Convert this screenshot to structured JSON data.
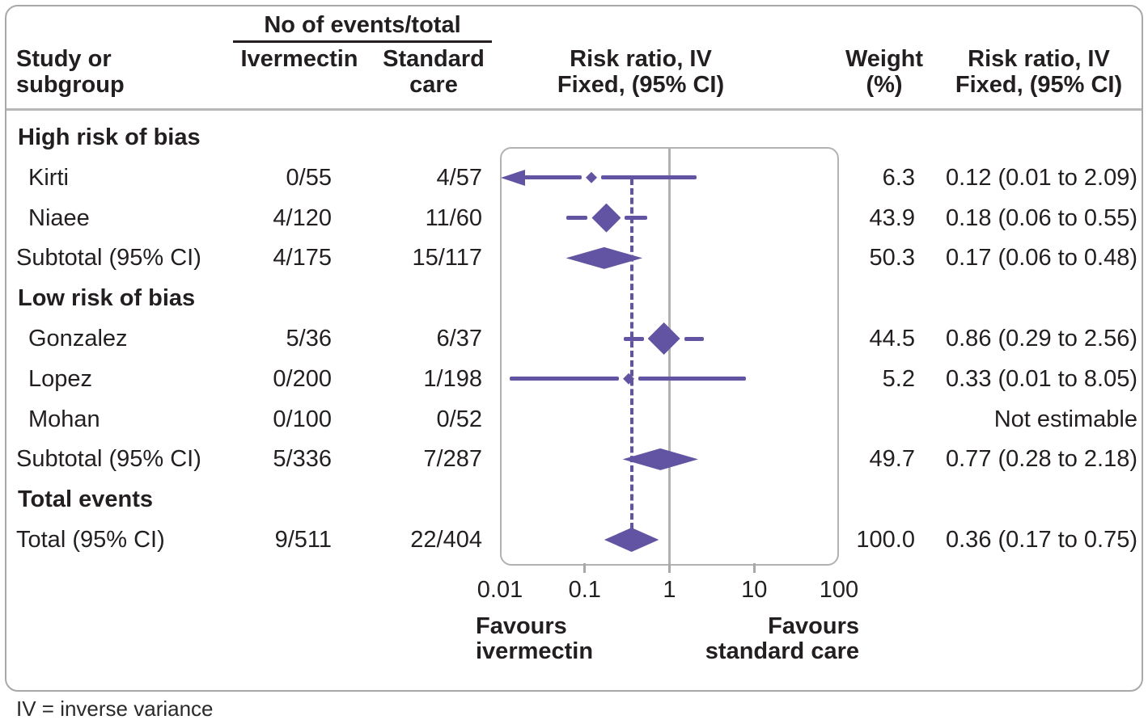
{
  "figure": {
    "header": {
      "study_col_line1": "Study or",
      "study_col_line2": "subgroup",
      "events_group": "No of events/total",
      "col_ivermectin": "Ivermectin",
      "col_standard_line1": "Standard",
      "col_standard_line2": "care",
      "plot_col_line1": "Risk ratio, IV",
      "plot_col_line2": "Fixed, (95% CI)",
      "weight_line1": "Weight",
      "weight_line2": "(%)",
      "rr_col_line1": "Risk ratio, IV",
      "rr_col_line2": "Fixed, (95% CI)"
    },
    "footnote": "IV = inverse variance"
  },
  "colors": {
    "accent": "#6254a2",
    "grid": "#b2b2b2",
    "border": "#a8a8a8",
    "text": "#231f20"
  },
  "chart_data": {
    "type": "forest",
    "effect_measure": "Risk ratio, IV Fixed, (95% CI)",
    "comparison": [
      "Ivermectin",
      "Standard care"
    ],
    "x_axis": {
      "scale": "log",
      "range": [
        0.01,
        100
      ],
      "ticks": [
        0.01,
        0.1,
        1,
        10,
        100
      ],
      "tick_labels": [
        "0.01",
        "0.1",
        "1",
        "10",
        "100"
      ],
      "minor_tick_marks": [
        0.1,
        1,
        10
      ],
      "null_line": 1,
      "pooled_estimate_line": 0.36,
      "favours_left_line1": "Favours",
      "favours_left_line2": "ivermectin",
      "favours_right_line1": "Favours",
      "favours_right_line2": "standard care"
    },
    "rows": [
      {
        "kind": "group",
        "label": "High risk of bias",
        "events_ivermectin": "",
        "events_standard": "",
        "weight": "",
        "rr_text": "",
        "rr": null
      },
      {
        "kind": "study",
        "label": "Kirti",
        "events_ivermectin": "0/55",
        "events_standard": "4/57",
        "weight": "6.3",
        "rr_text": "0.12 (0.01 to 2.09)",
        "rr": 0.12,
        "lo": 0.01,
        "hi": 2.09,
        "arrow_lo": true,
        "marker_size": 14
      },
      {
        "kind": "study",
        "label": "Niaee",
        "events_ivermectin": "4/120",
        "events_standard": "11/60",
        "weight": "43.9",
        "rr_text": "0.18 (0.06 to 0.55)",
        "rr": 0.18,
        "lo": 0.06,
        "hi": 0.55,
        "arrow_lo": false,
        "marker_size": 36
      },
      {
        "kind": "pooled",
        "label": "Subtotal (95% CI)",
        "events_ivermectin": "4/175",
        "events_standard": "15/117",
        "weight": "50.3",
        "rr_text": "0.17 (0.06 to 0.48)",
        "rr": 0.17,
        "lo": 0.06,
        "hi": 0.48
      },
      {
        "kind": "group",
        "label": "Low risk of bias",
        "events_ivermectin": "",
        "events_standard": "",
        "weight": "",
        "rr_text": "",
        "rr": null
      },
      {
        "kind": "study",
        "label": "Gonzalez",
        "events_ivermectin": "5/36",
        "events_standard": "6/37",
        "weight": "44.5",
        "rr_text": "0.86 (0.29 to 2.56)",
        "rr": 0.86,
        "lo": 0.29,
        "hi": 2.56,
        "arrow_lo": false,
        "marker_size": 40
      },
      {
        "kind": "study",
        "label": "Lopez",
        "events_ivermectin": "0/200",
        "events_standard": "1/198",
        "weight": "5.2",
        "rr_text": "0.33 (0.01 to 8.05)",
        "rr": 0.33,
        "lo": 0.01,
        "plot_lo": 0.013,
        "hi": 8.05,
        "arrow_lo": false,
        "marker_size": 14
      },
      {
        "kind": "study",
        "label": "Mohan",
        "events_ivermectin": "0/100",
        "events_standard": "0/52",
        "weight": "",
        "rr_text": "Not estimable",
        "rr": null
      },
      {
        "kind": "pooled",
        "label": "Subtotal (95% CI)",
        "events_ivermectin": "5/336",
        "events_standard": "7/287",
        "weight": "49.7",
        "rr_text": "0.77 (0.28 to 2.18)",
        "rr": 0.77,
        "lo": 0.28,
        "hi": 2.18
      },
      {
        "kind": "group",
        "label": "Total events",
        "events_ivermectin": "",
        "events_standard": "",
        "weight": "",
        "rr_text": "",
        "rr": null
      },
      {
        "kind": "pooled",
        "label": "Total (95% CI)",
        "events_ivermectin": "9/511",
        "events_standard": "22/404",
        "weight": "100.0",
        "rr_text": "0.36 (0.17 to 0.75)",
        "rr": 0.36,
        "lo": 0.17,
        "hi": 0.75
      }
    ]
  }
}
